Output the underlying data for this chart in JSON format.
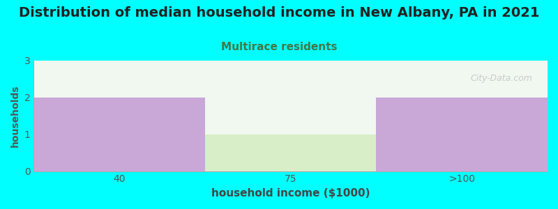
{
  "title": "Distribution of median household income in New Albany, PA in 2021",
  "subtitle": "Multirace residents",
  "xlabel": "household income ($1000)",
  "ylabel": "households",
  "background_color": "#00FFFF",
  "plot_bg_color": "#F0F8F0",
  "categories": [
    "40",
    "75",
    ">100"
  ],
  "values": [
    2,
    1,
    2
  ],
  "bar_colors": [
    "#C9A8D8",
    "#D8EEC8",
    "#C9A8D8"
  ],
  "ylim": [
    0,
    3
  ],
  "yticks": [
    0,
    1,
    2,
    3
  ],
  "title_fontsize": 14,
  "subtitle_fontsize": 11,
  "subtitle_color": "#447744",
  "ylabel_color": "#555555",
  "xlabel_color": "#444444",
  "tick_label_color": "#555555",
  "watermark_text": "City-Data.com",
  "watermark_color": "#C0C0C0"
}
